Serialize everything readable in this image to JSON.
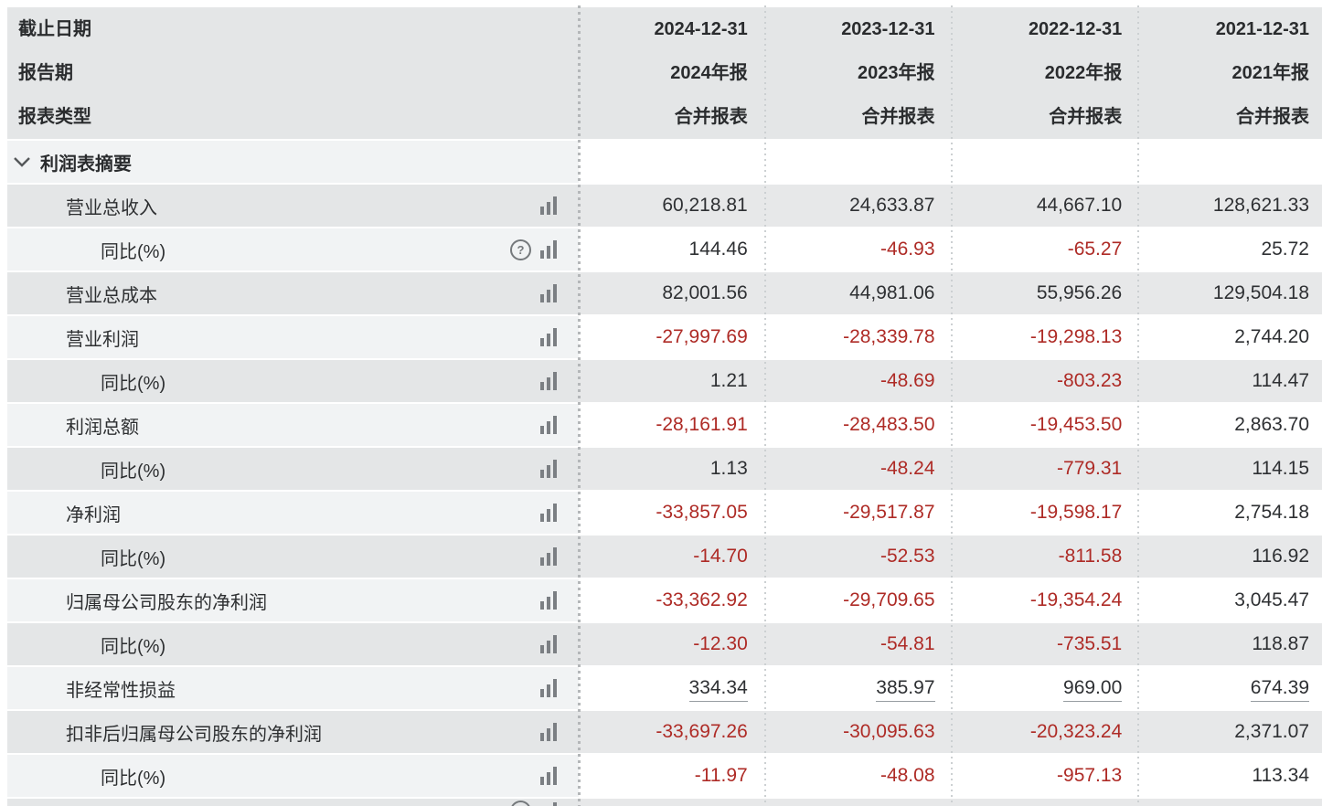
{
  "colors": {
    "negative_value": "#ae2b26",
    "normal_value": "#2e3033",
    "row_dark_label_bg": "#e4e6e7",
    "row_dark_data_bg": "#e7e8e9",
    "row_light_label_bg": "#f1f3f4",
    "row_light_data_bg": "#ffffff",
    "icon_gray": "#7b7f83"
  },
  "icons": {
    "help_glyph": "?"
  },
  "header": {
    "rows": [
      {
        "label": "截止日期",
        "values": [
          "2024-12-31",
          "2023-12-31",
          "2022-12-31",
          "2021-12-31"
        ]
      },
      {
        "label": "报告期",
        "values": [
          "2024年报",
          "2023年报",
          "2022年报",
          "2021年报"
        ]
      },
      {
        "label": "报表类型",
        "values": [
          "合并报表",
          "合并报表",
          "合并报表",
          "合并报表"
        ]
      }
    ]
  },
  "section": {
    "label": "利润表摘要"
  },
  "rows": [
    {
      "label": "营业总收入",
      "level": "primary",
      "help": false,
      "underline": false,
      "values": [
        "60,218.81",
        "24,633.87",
        "44,667.10",
        "128,621.33"
      ]
    },
    {
      "label": "同比(%)",
      "level": "sub",
      "help": true,
      "underline": false,
      "values": [
        "144.46",
        "-46.93",
        "-65.27",
        "25.72"
      ]
    },
    {
      "label": "营业总成本",
      "level": "primary",
      "help": false,
      "underline": false,
      "values": [
        "82,001.56",
        "44,981.06",
        "55,956.26",
        "129,504.18"
      ]
    },
    {
      "label": "营业利润",
      "level": "primary",
      "help": false,
      "underline": false,
      "values": [
        "-27,997.69",
        "-28,339.78",
        "-19,298.13",
        "2,744.20"
      ]
    },
    {
      "label": "同比(%)",
      "level": "sub",
      "help": false,
      "underline": false,
      "values": [
        "1.21",
        "-48.69",
        "-803.23",
        "114.47"
      ]
    },
    {
      "label": "利润总额",
      "level": "primary",
      "help": false,
      "underline": false,
      "values": [
        "-28,161.91",
        "-28,483.50",
        "-19,453.50",
        "2,863.70"
      ]
    },
    {
      "label": "同比(%)",
      "level": "sub",
      "help": false,
      "underline": false,
      "values": [
        "1.13",
        "-48.24",
        "-779.31",
        "114.15"
      ]
    },
    {
      "label": "净利润",
      "level": "primary",
      "help": false,
      "underline": false,
      "values": [
        "-33,857.05",
        "-29,517.87",
        "-19,598.17",
        "2,754.18"
      ]
    },
    {
      "label": "同比(%)",
      "level": "sub",
      "help": false,
      "underline": false,
      "values": [
        "-14.70",
        "-52.53",
        "-811.58",
        "116.92"
      ]
    },
    {
      "label": "归属母公司股东的净利润",
      "level": "primary",
      "help": false,
      "underline": false,
      "values": [
        "-33,362.92",
        "-29,709.65",
        "-19,354.24",
        "3,045.47"
      ]
    },
    {
      "label": "同比(%)",
      "level": "sub",
      "help": false,
      "underline": false,
      "values": [
        "-12.30",
        "-54.81",
        "-735.51",
        "118.87"
      ]
    },
    {
      "label": "非经常性损益",
      "level": "primary",
      "help": false,
      "underline": true,
      "values": [
        "334.34",
        "385.97",
        "969.00",
        "674.39"
      ]
    },
    {
      "label": "扣非后归属母公司股东的净利润",
      "level": "primary",
      "help": false,
      "underline": false,
      "values": [
        "-33,697.26",
        "-30,095.63",
        "-20,323.24",
        "2,371.07"
      ]
    },
    {
      "label": "同比(%)",
      "level": "sub",
      "help": false,
      "underline": false,
      "values": [
        "-11.97",
        "-48.08",
        "-957.13",
        "113.34"
      ]
    }
  ]
}
